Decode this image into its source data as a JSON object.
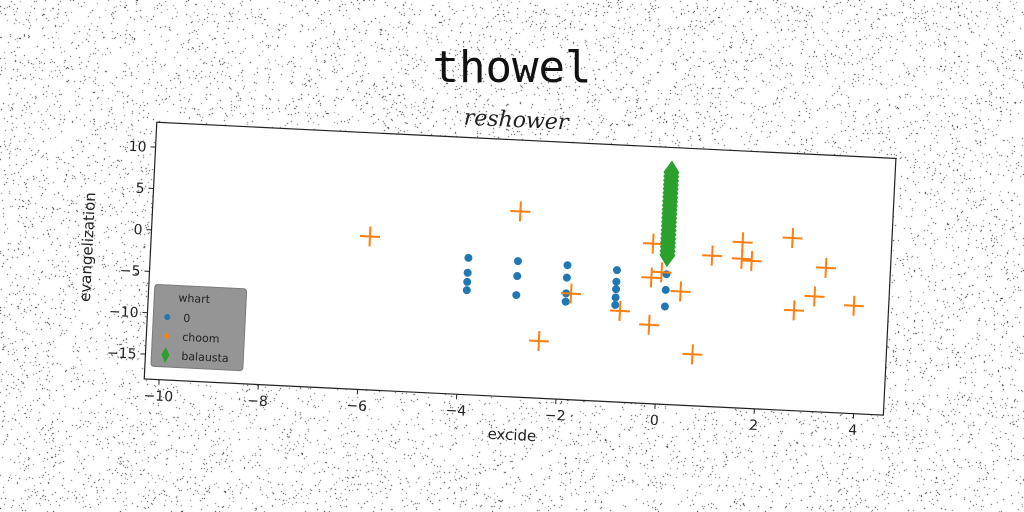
{
  "chart_data": {
    "type": "scatter",
    "title": "thowel",
    "subtitle": "reshower",
    "xlabel": "excide",
    "ylabel": "evangelization",
    "xlim": [
      -10.3,
      4.6
    ],
    "ylim": [
      -18,
      13
    ],
    "xticks": [
      -10,
      -8,
      -6,
      -4,
      -2,
      0,
      2,
      4
    ],
    "xtick_labels": [
      "−10",
      "−8",
      "−6",
      "−4",
      "−2",
      "0",
      "2",
      "4"
    ],
    "yticks": [
      -15,
      -10,
      -5,
      0,
      5,
      10
    ],
    "ytick_labels": [
      "−15",
      "−10",
      "−5",
      "0",
      "5",
      "10"
    ],
    "grid": false,
    "legend": {
      "title": "whart",
      "position": "lower-left"
    },
    "series": [
      {
        "name": "0",
        "marker": "circle",
        "color": "#1f77b4",
        "points": [
          [
            -3.9,
            -1.5
          ],
          [
            -3.9,
            -3.3
          ],
          [
            -3.9,
            -4.4
          ],
          [
            -3.9,
            -5.4
          ],
          [
            -2.9,
            -1.6
          ],
          [
            -2.9,
            -3.4
          ],
          [
            -2.9,
            -5.7
          ],
          [
            -1.9,
            -1.8
          ],
          [
            -1.9,
            -3.3
          ],
          [
            -1.9,
            -5.2
          ],
          [
            -1.9,
            -6.2
          ],
          [
            -0.9,
            -2.1
          ],
          [
            -0.9,
            -3.5
          ],
          [
            -0.9,
            -4.4
          ],
          [
            -0.9,
            -5.4
          ],
          [
            -0.9,
            -6.3
          ],
          [
            0.1,
            -2.3
          ],
          [
            0.1,
            -4.2
          ],
          [
            0.1,
            -6.2
          ]
        ]
      },
      {
        "name": "choom",
        "marker": "plus",
        "color": "#ff7f0e",
        "points": [
          [
            -5.9,
            0.5
          ],
          [
            -2.9,
            4.4
          ],
          [
            -2.4,
            -11.1
          ],
          [
            -1.8,
            -5.2
          ],
          [
            -0.8,
            -7.0
          ],
          [
            -0.2,
            1.3
          ],
          [
            -0.2,
            -2.8
          ],
          [
            -0.2,
            -8.5
          ],
          [
            0.0,
            -2.1
          ],
          [
            0.4,
            -4.3
          ],
          [
            0.7,
            -11.8
          ],
          [
            1.0,
            0.2
          ],
          [
            1.6,
            2.0
          ],
          [
            1.6,
            0.0
          ],
          [
            1.8,
            -0.2
          ],
          [
            2.6,
            2.8
          ],
          [
            2.7,
            -5.9
          ],
          [
            3.1,
            -4.1
          ],
          [
            3.3,
            -0.6
          ],
          [
            3.9,
            -5.0
          ]
        ]
      },
      {
        "name": "balausta",
        "marker": "thin_diamond",
        "color": "#2ca02c",
        "points": [
          [
            0.1,
            10.0
          ],
          [
            0.1,
            9.5
          ],
          [
            0.1,
            9.0
          ],
          [
            0.1,
            8.5
          ],
          [
            0.1,
            8.0
          ],
          [
            0.1,
            7.5
          ],
          [
            0.1,
            7.0
          ],
          [
            0.1,
            6.5
          ],
          [
            0.1,
            6.0
          ],
          [
            0.1,
            5.5
          ],
          [
            0.1,
            5.0
          ],
          [
            0.1,
            4.5
          ],
          [
            0.1,
            4.0
          ],
          [
            0.1,
            3.5
          ],
          [
            0.1,
            3.0
          ],
          [
            0.1,
            2.5
          ],
          [
            0.1,
            2.0
          ],
          [
            0.1,
            1.5
          ],
          [
            0.1,
            1.0
          ],
          [
            0.1,
            0.5
          ],
          [
            0.1,
            0.0
          ]
        ]
      }
    ]
  }
}
